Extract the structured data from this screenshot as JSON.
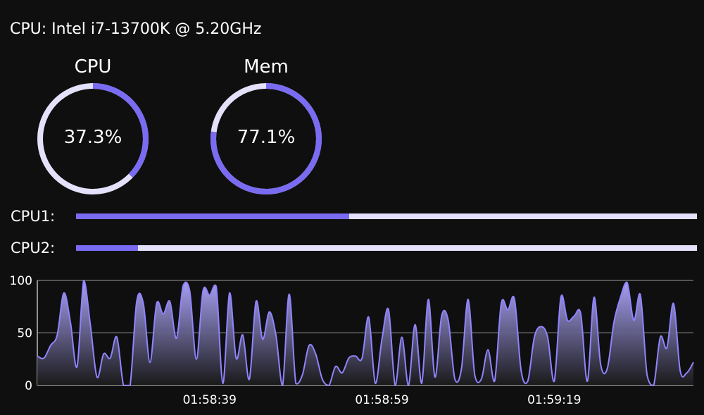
{
  "header": {
    "cpu_info": "CPU: Intel i7-13700K @ 5.20GHz"
  },
  "gauges": [
    {
      "label": "CPU",
      "value_text": "37.3%",
      "fraction": 0.373
    },
    {
      "label": "Mem",
      "value_text": "77.1%",
      "fraction": 0.771
    }
  ],
  "cores": [
    {
      "label": "CPU1:",
      "fraction": 0.44
    },
    {
      "label": "CPU2:",
      "fraction": 0.1
    }
  ],
  "colors": {
    "background": "#0f0f0f",
    "accent": "#7a6cf2",
    "track": "#e4e1fb",
    "line": "#8f84ff",
    "grid": "#9a9a9a"
  },
  "chart_data": {
    "type": "area",
    "ylim": [
      0,
      100
    ],
    "y_ticks": [
      "100",
      "50",
      "0"
    ],
    "x_tick_labels": [
      "01:58:39",
      "01:58:59",
      "01:59:19"
    ],
    "grid": true,
    "series": [
      {
        "values": [
          28,
          26,
          38,
          48,
          88,
          60,
          18,
          100,
          58,
          8,
          30,
          26,
          46,
          0,
          0,
          80,
          78,
          22,
          78,
          68,
          80,
          45,
          95,
          90,
          25,
          90,
          86,
          94,
          2,
          88,
          26,
          48,
          6,
          80,
          44,
          70,
          48,
          0,
          87,
          2,
          10,
          38,
          30,
          6,
          0,
          18,
          12,
          26,
          28,
          26,
          65,
          2,
          44,
          72,
          0,
          46,
          0,
          58,
          2,
          82,
          8,
          66,
          62,
          6,
          16,
          82,
          10,
          6,
          34,
          4,
          78,
          72,
          82,
          14,
          4,
          46,
          56,
          46,
          4,
          84,
          62,
          66,
          68,
          4,
          84,
          20,
          16,
          60,
          84,
          98,
          62,
          86,
          10,
          0,
          46,
          36,
          78,
          14,
          12,
          22
        ]
      }
    ]
  }
}
